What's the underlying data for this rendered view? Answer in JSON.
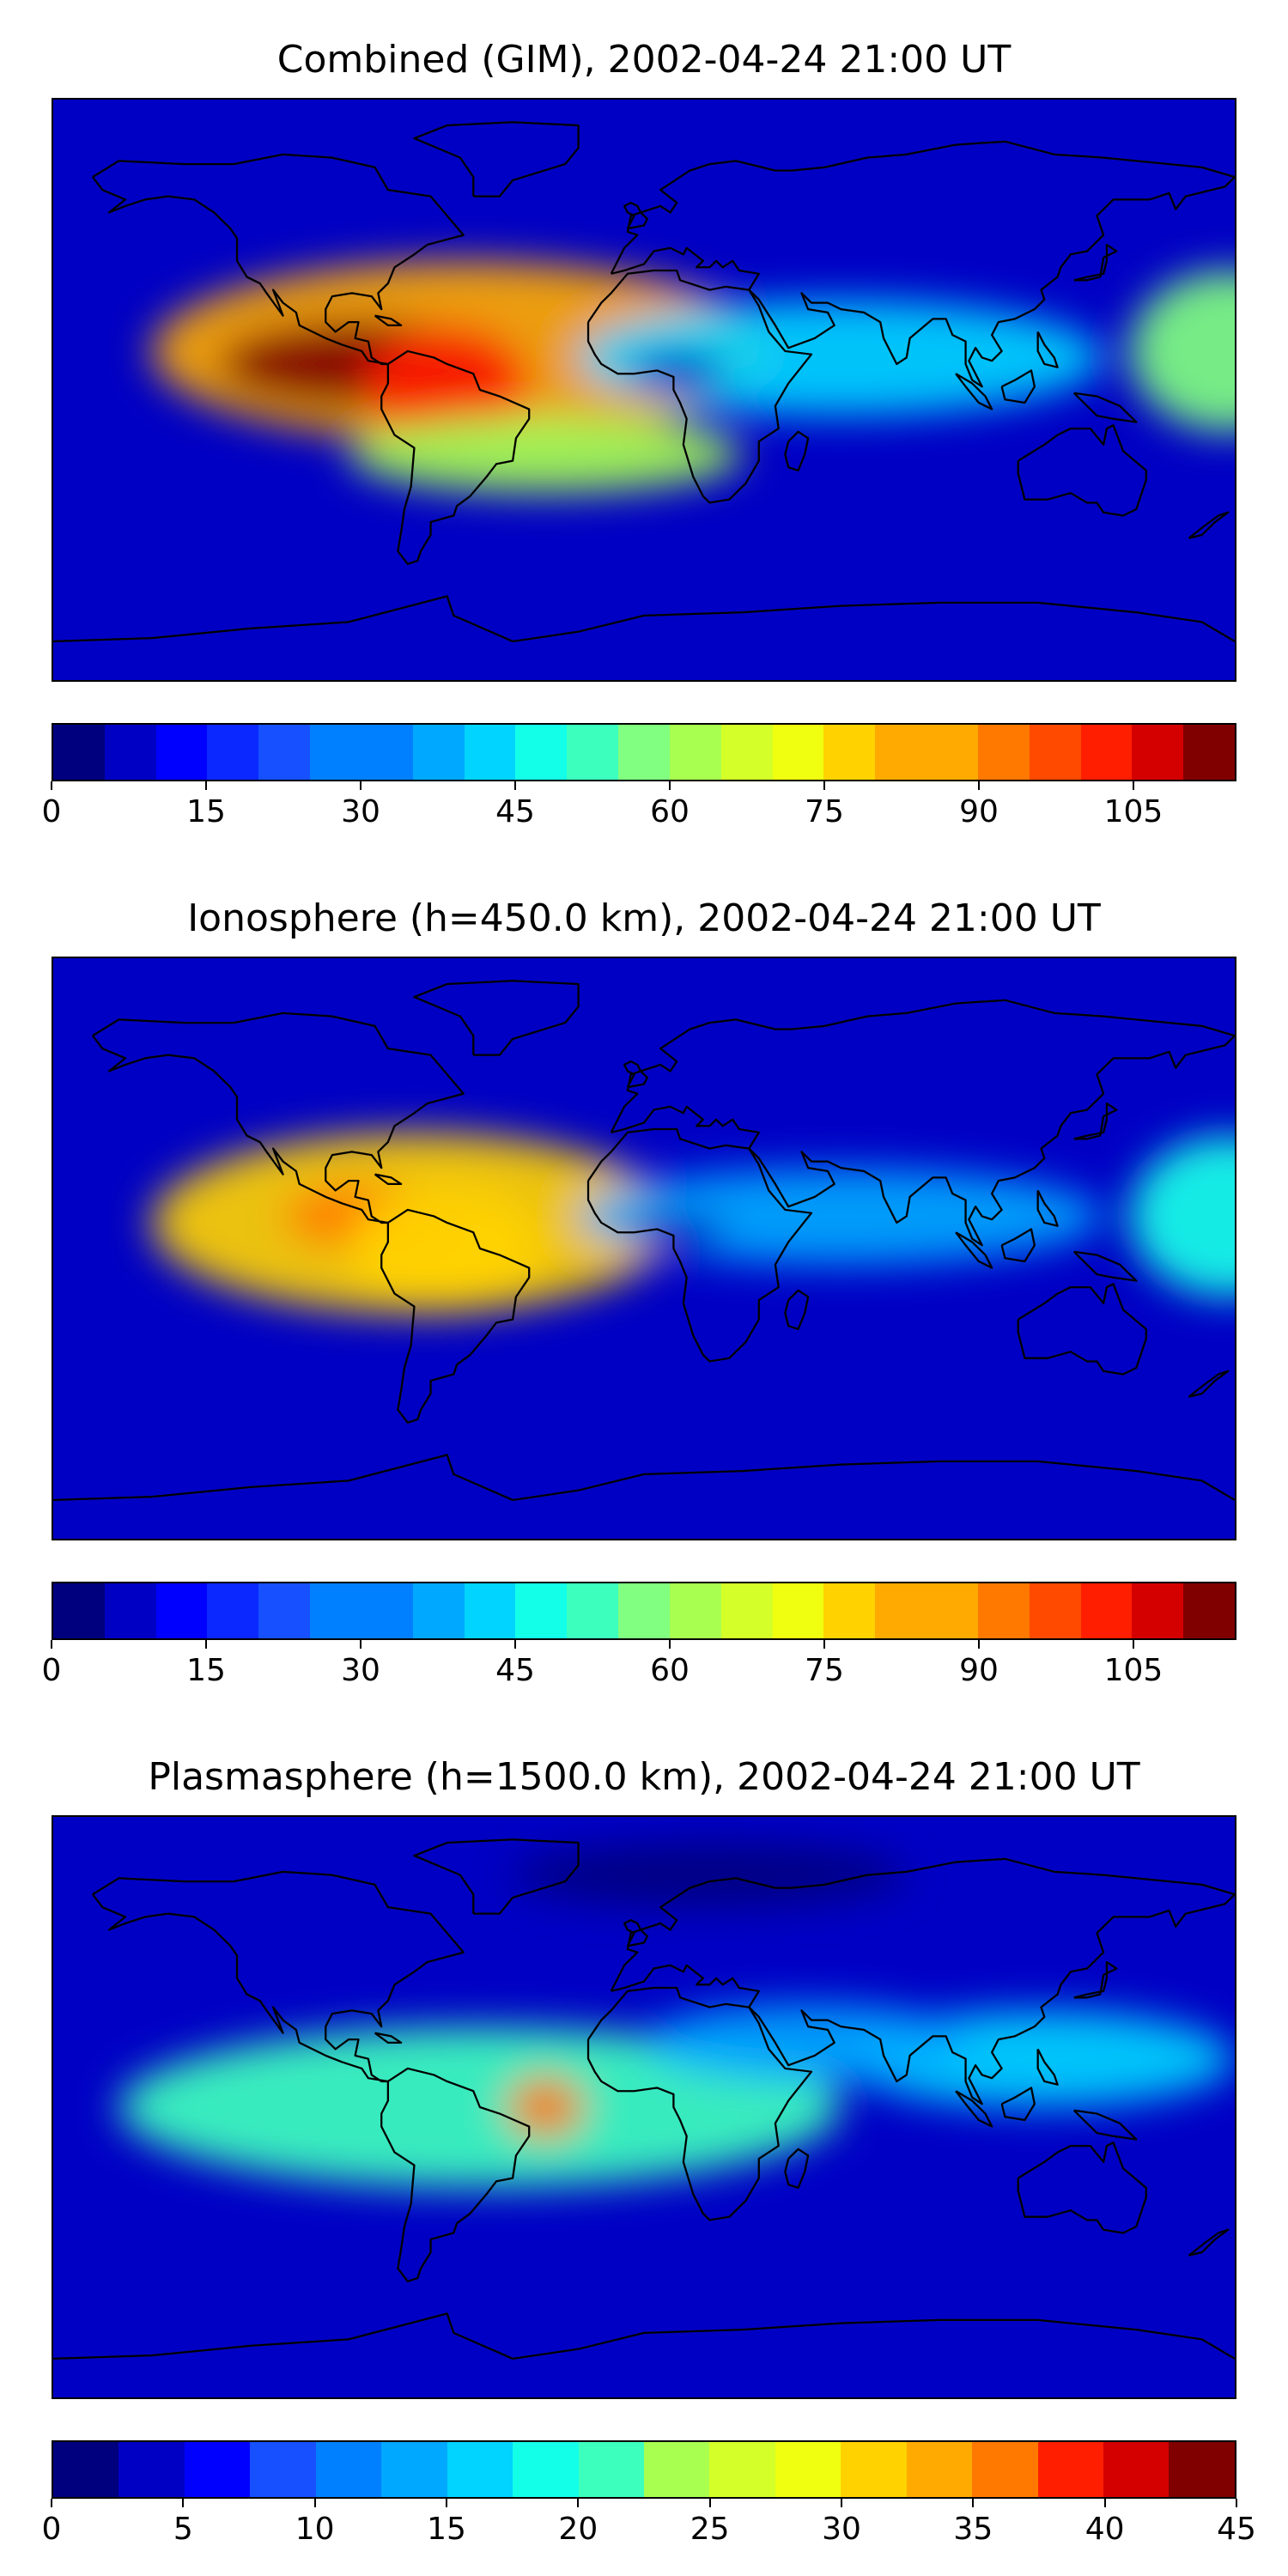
{
  "figure": {
    "palette": [
      "#00007f",
      "#0000c4",
      "#0000ff",
      "#0a28ff",
      "#1650ff",
      "#0080ff",
      "#00a8ff",
      "#00d4ff",
      "#14ffe8",
      "#3cffbe",
      "#80ff80",
      "#a8ff50",
      "#d4ff28",
      "#f0ff10",
      "#ffd200",
      "#ffaa00",
      "#ff7800",
      "#ff4a00",
      "#ff1e00",
      "#d40000",
      "#800000"
    ]
  },
  "panels": [
    {
      "title": "Combined (GIM), 2002-04-24 21:00 UT",
      "colorbar": {
        "min": 0,
        "max": 115,
        "levels": 23,
        "ticks": [
          "0",
          "15",
          "30",
          "45",
          "60",
          "75",
          "90",
          "105"
        ]
      },
      "blobs": [
        {
          "lon": -55,
          "lat": 12,
          "rlon": 95,
          "rlat": 28,
          "value": 80
        },
        {
          "lon": -85,
          "lat": 8,
          "rlon": 45,
          "rlat": 14,
          "value": 112
        },
        {
          "lon": -60,
          "lat": 2,
          "rlon": 25,
          "rlat": 18,
          "value": 100
        },
        {
          "lon": 178,
          "lat": 12,
          "rlon": 30,
          "rlat": 25,
          "value": 55
        },
        {
          "lon": 60,
          "lat": 10,
          "rlon": 80,
          "rlat": 18,
          "value": 40
        },
        {
          "lon": -30,
          "lat": -20,
          "rlon": 60,
          "rlat": 12,
          "value": 60
        },
        {
          "lon": 10,
          "lat": 5,
          "rlon": 15,
          "rlat": 6,
          "value": 8
        }
      ]
    },
    {
      "title": "Ionosphere  (h=450.0 km), 2002-04-24 21:00 UT",
      "colorbar": {
        "min": 0,
        "max": 115,
        "levels": 23,
        "ticks": [
          "0",
          "15",
          "30",
          "45",
          "60",
          "75",
          "90",
          "105"
        ]
      },
      "blobs": [
        {
          "lon": -70,
          "lat": 8,
          "rlon": 80,
          "rlat": 28,
          "value": 75
        },
        {
          "lon": -85,
          "lat": 10,
          "rlon": 25,
          "rlat": 10,
          "value": 90
        },
        {
          "lon": -60,
          "lat": 0,
          "rlon": 30,
          "rlat": 20,
          "value": 75
        },
        {
          "lon": 178,
          "lat": 10,
          "rlon": 30,
          "rlat": 25,
          "value": 45
        },
        {
          "lon": 60,
          "lat": 10,
          "rlon": 80,
          "rlat": 15,
          "value": 35
        },
        {
          "lon": 10,
          "lat": 5,
          "rlon": 15,
          "rlat": 6,
          "value": 8
        }
      ]
    },
    {
      "title": "Plasmasphere (h=1500.0 km), 2002-04-24 21:00 UT",
      "colorbar": {
        "min": 0,
        "max": 45,
        "levels": 18,
        "ticks": [
          "0",
          "5",
          "10",
          "15",
          "20",
          "25",
          "30",
          "35",
          "40",
          "45"
        ]
      },
      "blobs": [
        {
          "lon": -50,
          "lat": 0,
          "rlon": 110,
          "rlat": 25,
          "value": 22
        },
        {
          "lon": -30,
          "lat": 0,
          "rlon": 12,
          "rlat": 10,
          "value": 37
        },
        {
          "lon": 120,
          "lat": 15,
          "rlon": 60,
          "rlat": 15,
          "value": 15
        },
        {
          "lon": 50,
          "lat": 20,
          "rlon": 50,
          "rlat": 12,
          "value": 14
        },
        {
          "lon": 20,
          "lat": 72,
          "rlon": 60,
          "rlat": 10,
          "value": 2
        }
      ]
    }
  ]
}
